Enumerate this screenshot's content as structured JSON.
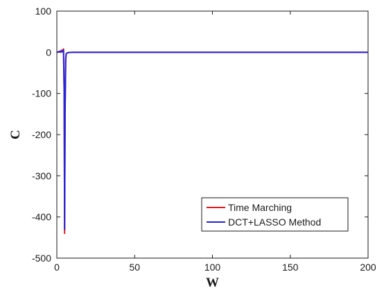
{
  "chart_data": {
    "type": "line",
    "title": "",
    "xlabel": "W",
    "ylabel": "C",
    "xlim": [
      0,
      200
    ],
    "ylim": [
      -500,
      100
    ],
    "xticks": [
      0,
      50,
      100,
      150,
      200
    ],
    "yticks": [
      -500,
      -400,
      -300,
      -200,
      -100,
      0,
      100
    ],
    "grid": false,
    "legend_position": "bottom-right",
    "series": [
      {
        "name": "Time Marching",
        "color": "#e41a1c",
        "x": [
          0,
          1,
          2,
          2.5,
          3,
          3.5,
          4,
          4.3,
          4.7,
          5,
          5.3,
          5.7,
          6,
          6.5,
          7,
          8,
          10,
          15,
          50,
          100,
          150,
          200
        ],
        "y": [
          0,
          1,
          3,
          0,
          5,
          2,
          7,
          8,
          -100,
          -440,
          -150,
          -20,
          -5,
          -2,
          -1,
          -0.5,
          0,
          0,
          0,
          0,
          0,
          0
        ]
      },
      {
        "name": "DCT+LASSO Method",
        "color": "#2424d8",
        "x": [
          0,
          1,
          2,
          2.5,
          3,
          3.5,
          4,
          4.3,
          4.7,
          5,
          5.3,
          5.7,
          6,
          6.5,
          7,
          8,
          10,
          15,
          50,
          100,
          150,
          200
        ],
        "y": [
          0,
          0.5,
          2,
          0,
          3,
          1,
          4,
          5,
          -90,
          -430,
          -140,
          -15,
          -4,
          -2,
          -1,
          -0.5,
          0,
          0,
          0,
          0,
          0,
          0
        ]
      }
    ]
  }
}
